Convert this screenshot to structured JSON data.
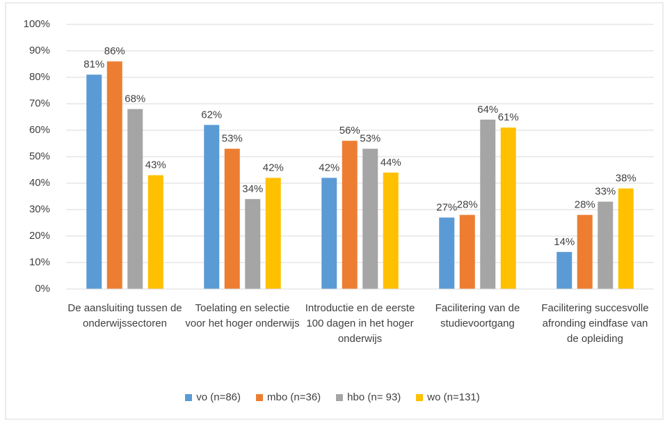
{
  "chart_data": {
    "type": "bar",
    "categories": [
      "De aansluiting tussen de onderwijssectoren",
      "Toelating en selectie voor het hoger onderwijs",
      "Introductie en de eerste 100 dagen in het hoger onderwijs",
      "Facilitering van de studievoortgang",
      "Facilitering succesvolle afronding eindfase van de opleiding"
    ],
    "series": [
      {
        "name": "vo (n=86)",
        "color": "#5b9bd5",
        "values": [
          81,
          62,
          42,
          27,
          14
        ],
        "value_labels": [
          "81%",
          "62%",
          "42%",
          "27%",
          "14%"
        ]
      },
      {
        "name": "mbo (n=36)",
        "color": "#ed7d31",
        "values": [
          86,
          53,
          56,
          28,
          28
        ],
        "value_labels": [
          "86%",
          "53%",
          "56%",
          "28%",
          "28%"
        ]
      },
      {
        "name": "hbo (n= 93)",
        "color": "#a5a5a5",
        "values": [
          68,
          34,
          53,
          64,
          33
        ],
        "value_labels": [
          "68%",
          "34%",
          "53%",
          "64%",
          "33%"
        ]
      },
      {
        "name": "wo (n=131)",
        "color": "#ffc000",
        "values": [
          43,
          42,
          44,
          61,
          38
        ],
        "value_labels": [
          "43%",
          "42%",
          "44%",
          "61%",
          "38%"
        ]
      }
    ],
    "ylim": [
      0,
      100
    ],
    "yticks": [
      {
        "value": 0,
        "label": "0%"
      },
      {
        "value": 10,
        "label": "10%"
      },
      {
        "value": 20,
        "label": "20%"
      },
      {
        "value": 30,
        "label": "30%"
      },
      {
        "value": 40,
        "label": "40%"
      },
      {
        "value": 50,
        "label": "50%"
      },
      {
        "value": 60,
        "label": "60%"
      },
      {
        "value": 70,
        "label": "70%"
      },
      {
        "value": 80,
        "label": "80%"
      },
      {
        "value": 90,
        "label": "90%"
      },
      {
        "value": 100,
        "label": "100%"
      }
    ],
    "grid": true,
    "legend": "bottom"
  }
}
